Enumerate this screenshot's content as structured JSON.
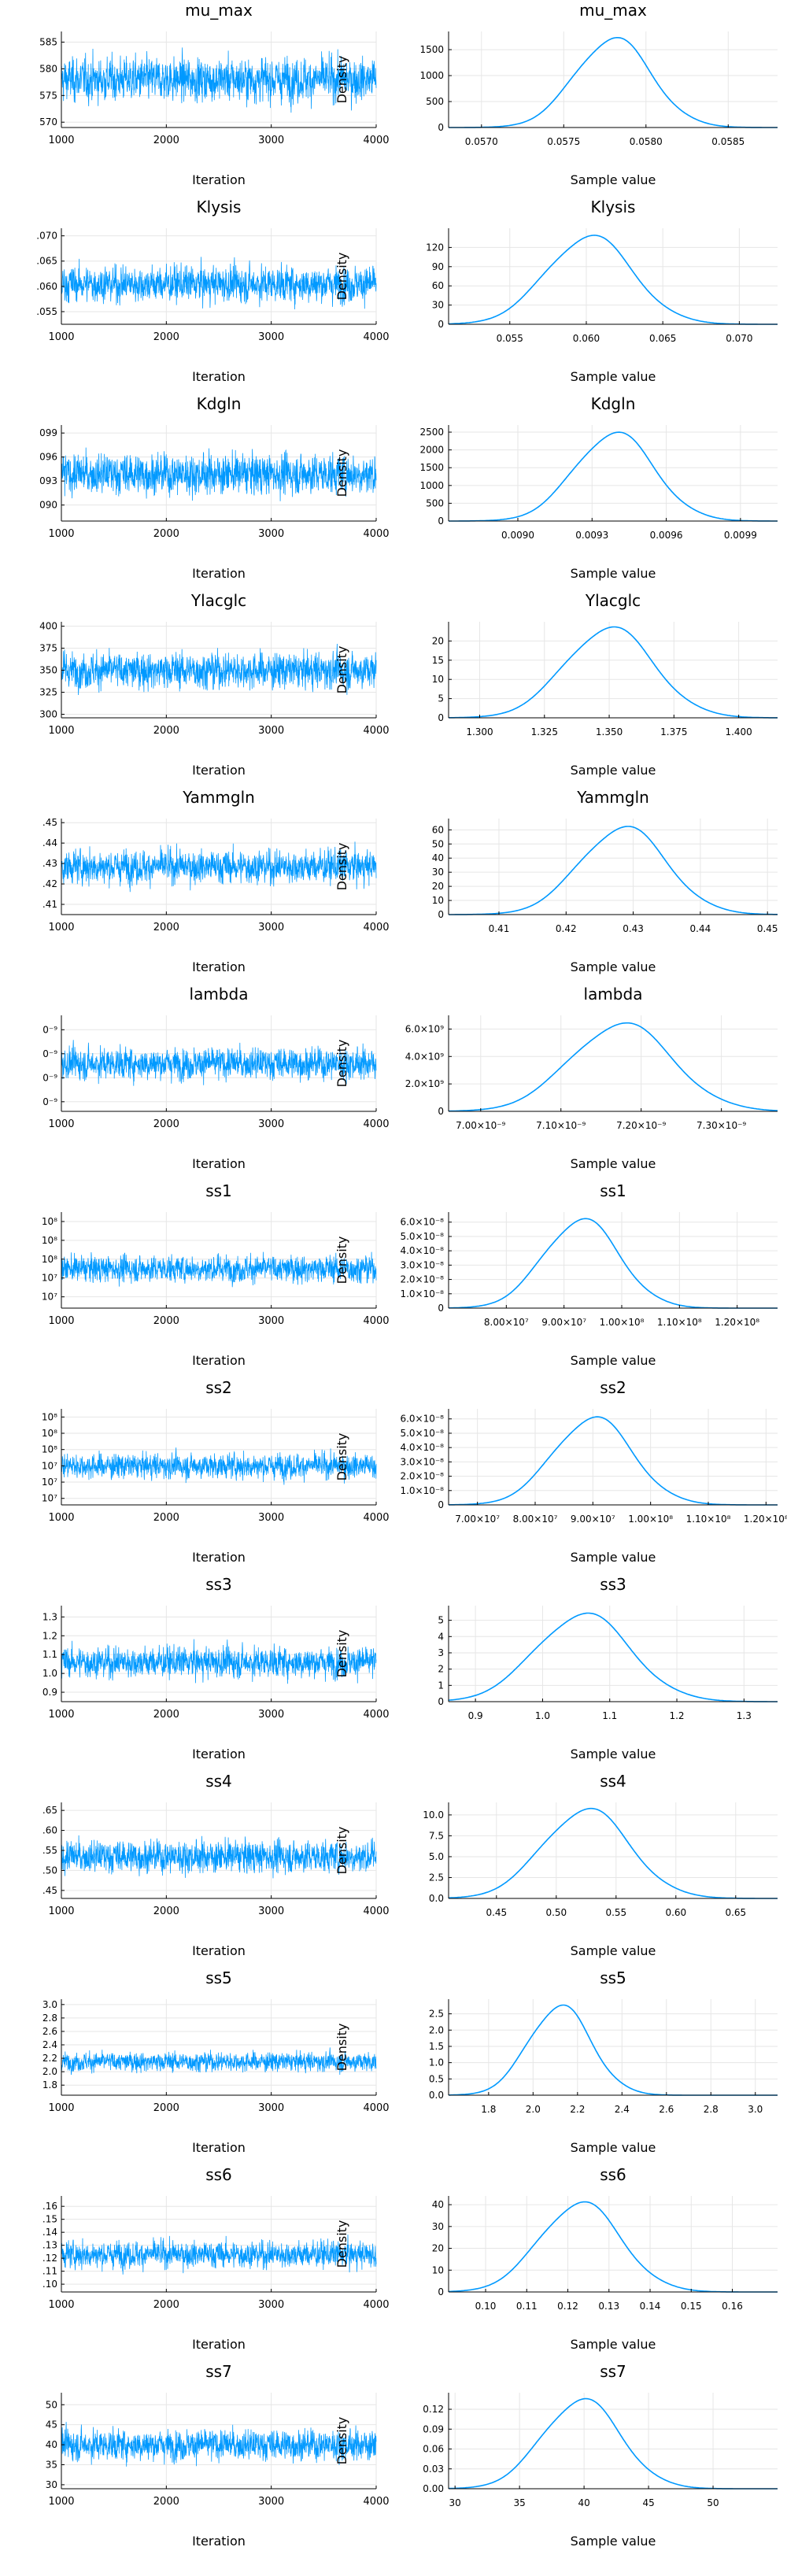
{
  "chart_data": [
    {
      "name": "mu_max",
      "type": "line",
      "trace": {
        "title": "mu_max",
        "xlabel": "Iteration",
        "ylabel": "",
        "xlim": [
          1000,
          4000
        ],
        "xticks": [
          "1000",
          "2000",
          "3000",
          "4000"
        ],
        "ylim": [
          0.0569,
          0.0587
        ],
        "yticks": [
          0.057,
          0.0575,
          0.058,
          0.0585
        ],
        "ytick_labels": [
          "570",
          "575",
          "580",
          "585"
        ],
        "center": 0.0578,
        "spread": 0.0004
      },
      "density": {
        "title": "mu_max",
        "xlabel": "Sample value",
        "ylabel": "Density",
        "xlim": [
          0.0568,
          0.0588
        ],
        "xticks": [
          0.057,
          0.0575,
          0.058,
          0.0585
        ],
        "xtick_labels": [
          "0.0570",
          "0.0575",
          "0.0580",
          "0.0585"
        ],
        "ylim": [
          0,
          1850
        ],
        "yticks": [
          0,
          500,
          1000,
          1500
        ],
        "ytick_labels": [
          "0",
          "500",
          "1000",
          "1500"
        ],
        "peak_x": 0.0578,
        "peak_y": 1720,
        "sd": 0.00023
      }
    },
    {
      "name": "Klysis",
      "type": "line",
      "trace": {
        "title": "Klysis",
        "xlabel": "Iteration",
        "ylabel": "",
        "xlim": [
          1000,
          4000
        ],
        "xticks": [
          "1000",
          "2000",
          "3000",
          "4000"
        ],
        "ylim": [
          0.0525,
          0.0715
        ],
        "yticks": [
          0.055,
          0.06,
          0.065,
          0.07
        ],
        "ytick_labels": [
          ".055",
          ".060",
          ".065",
          ".070"
        ],
        "center": 0.0605,
        "spread": 0.0035
      },
      "density": {
        "title": "Klysis",
        "xlabel": "Sample value",
        "ylabel": "Density",
        "xlim": [
          0.051,
          0.0725
        ],
        "xticks": [
          0.055,
          0.06,
          0.065,
          0.07
        ],
        "xtick_labels": [
          "0.055",
          "0.060",
          "0.065",
          "0.070"
        ],
        "ylim": [
          0,
          150
        ],
        "yticks": [
          0,
          30,
          60,
          90,
          120
        ],
        "ytick_labels": [
          "0",
          "30",
          "60",
          "90",
          "120"
        ],
        "peak_x": 0.0602,
        "peak_y": 138,
        "sd": 0.0028
      }
    },
    {
      "name": "Kdgln",
      "type": "line",
      "trace": {
        "title": "Kdgln",
        "xlabel": "Iteration",
        "ylabel": "",
        "xlim": [
          1000,
          4000
        ],
        "xticks": [
          "1000",
          "2000",
          "3000",
          "4000"
        ],
        "ylim": [
          0.0088,
          0.01
        ],
        "yticks": [
          0.009,
          0.0093,
          0.0096,
          0.0099
        ],
        "ytick_labels": [
          "090",
          "093",
          "096",
          "099"
        ],
        "center": 0.00939,
        "spread": 0.00025
      },
      "density": {
        "title": "Kdgln",
        "xlabel": "Sample value",
        "ylabel": "Density",
        "xlim": [
          0.00872,
          0.01005
        ],
        "xticks": [
          0.009,
          0.0093,
          0.0096,
          0.0099
        ],
        "xtick_labels": [
          "0.0090",
          "0.0093",
          "0.0096",
          "0.0099"
        ],
        "ylim": [
          0,
          2700
        ],
        "yticks": [
          0,
          500,
          1000,
          1500,
          2000,
          2500
        ],
        "ytick_labels": [
          "0",
          "500",
          "1000",
          "1500",
          "2000",
          "2500"
        ],
        "peak_x": 0.00939,
        "peak_y": 2480,
        "sd": 0.00016
      }
    },
    {
      "name": "Ylacglc",
      "type": "line",
      "trace": {
        "title": "Ylacglc",
        "xlabel": "Iteration",
        "ylabel": "",
        "xlim": [
          1000,
          4000
        ],
        "xticks": [
          "1000",
          "2000",
          "3000",
          "4000"
        ],
        "ylim": [
          1.296,
          1.405
        ],
        "yticks": [
          1.3,
          1.325,
          1.35,
          1.375,
          1.4
        ],
        "ytick_labels": [
          "300",
          "325",
          "350",
          "375",
          "400"
        ],
        "center": 1.35,
        "spread": 0.02
      },
      "density": {
        "title": "Ylacglc",
        "xlabel": "Sample value",
        "ylabel": "Density",
        "xlim": [
          1.288,
          1.415
        ],
        "xticks": [
          1.3,
          1.325,
          1.35,
          1.375,
          1.4
        ],
        "xtick_labels": [
          "1.300",
          "1.325",
          "1.350",
          "1.375",
          "1.400"
        ],
        "ylim": [
          0,
          25
        ],
        "yticks": [
          0,
          5,
          10,
          15,
          20
        ],
        "ytick_labels": [
          "0",
          "5",
          "10",
          "15",
          "20"
        ],
        "peak_x": 1.35,
        "peak_y": 23.5,
        "sd": 0.017
      }
    },
    {
      "name": "Yammgln",
      "type": "line",
      "trace": {
        "title": "Yammgln",
        "xlabel": "Iteration",
        "ylabel": "",
        "xlim": [
          1000,
          4000
        ],
        "xticks": [
          "1000",
          "2000",
          "3000",
          "4000"
        ],
        "ylim": [
          0.405,
          0.452
        ],
        "yticks": [
          0.41,
          0.42,
          0.43,
          0.44,
          0.45
        ],
        "ytick_labels": [
          ".41",
          ".42",
          ".43",
          ".44",
          ".45"
        ],
        "center": 0.4285,
        "spread": 0.008
      },
      "density": {
        "title": "Yammgln",
        "xlabel": "Sample value",
        "ylabel": "Density",
        "xlim": [
          0.4025,
          0.4515
        ],
        "xticks": [
          0.41,
          0.42,
          0.43,
          0.44,
          0.45
        ],
        "xtick_labels": [
          "0.41",
          "0.42",
          "0.43",
          "0.44",
          "0.45"
        ],
        "ylim": [
          0,
          68
        ],
        "yticks": [
          0,
          10,
          20,
          30,
          40,
          50,
          60
        ],
        "ytick_labels": [
          "0",
          "10",
          "20",
          "30",
          "40",
          "50",
          "60"
        ],
        "peak_x": 0.4285,
        "peak_y": 62,
        "sd": 0.0064
      }
    },
    {
      "name": "lambda",
      "type": "line",
      "trace": {
        "title": "lambda",
        "xlabel": "Iteration",
        "ylabel": "",
        "xlim": [
          1000,
          4000
        ],
        "xticks": [
          "1000",
          "2000",
          "3000",
          "4000"
        ],
        "ylim": [
          6.96e-09,
          7.36e-09
        ],
        "yticks": [
          7e-09,
          7.1e-09,
          7.2e-09,
          7.3e-09
        ],
        "ytick_labels": [
          "0⁻⁹",
          "0⁻⁹",
          "0⁻⁹",
          "0⁻⁹"
        ],
        "center": 7.16e-09,
        "spread": 6.5e-11
      },
      "density": {
        "title": "lambda",
        "xlabel": "Sample value",
        "ylabel": "Density",
        "xlim": [
          6.96e-09,
          7.37e-09
        ],
        "xticks": [
          7e-09,
          7.1e-09,
          7.2e-09,
          7.3e-09
        ],
        "xtick_labels": [
          "7.00×10⁻⁹",
          "7.10×10⁻⁹",
          "7.20×10⁻⁹",
          "7.30×10⁻⁹"
        ],
        "ylim": [
          0,
          7000000000.0
        ],
        "yticks": [
          0,
          2000000000.0,
          4000000000.0,
          6000000000.0
        ],
        "ytick_labels": [
          "0",
          "2.0×10⁹",
          "4.0×10⁹",
          "6.0×10⁹"
        ],
        "peak_x": 7.175e-09,
        "peak_y": 6400000000.0,
        "sd": 6.3e-11
      }
    },
    {
      "name": "ss1",
      "type": "line",
      "trace": {
        "title": "ss1",
        "xlabel": "Iteration",
        "ylabel": "",
        "xlim": [
          1000,
          4000
        ],
        "xticks": [
          "1000",
          "2000",
          "3000",
          "4000"
        ],
        "ylim": [
          74000000.0,
          125000000.0
        ],
        "yticks": [
          80000000.0,
          90000000.0,
          100000000.0,
          110000000.0,
          120000000.0
        ],
        "ytick_labels": [
          "10⁷",
          "10⁷",
          "10⁸",
          "10⁸",
          "10⁸"
        ],
        "center": 95000000.0,
        "spread": 7000000.0
      },
      "density": {
        "title": "ss1",
        "xlabel": "Sample value",
        "ylabel": "Density",
        "xlim": [
          70000000.0,
          127000000.0
        ],
        "xticks": [
          80000000.0,
          90000000.0,
          100000000.0,
          110000000.0,
          120000000.0
        ],
        "xtick_labels": [
          "8.00×10⁷",
          "9.00×10⁷",
          "1.00×10⁸",
          "1.10×10⁸",
          "1.20×10⁸"
        ],
        "ylim": [
          0,
          6.7e-08
        ],
        "yticks": [
          0,
          1e-08,
          2e-08,
          3e-08,
          4e-08,
          5e-08,
          6e-08
        ],
        "ytick_labels": [
          "0",
          "1.0×10⁻⁸",
          "2.0×10⁻⁸",
          "3.0×10⁻⁸",
          "4.0×10⁻⁸",
          "5.0×10⁻⁸",
          "6.0×10⁻⁸"
        ],
        "peak_x": 93000000.0,
        "peak_y": 6.2e-08,
        "sd": 6500000.0
      }
    },
    {
      "name": "ss2",
      "type": "line",
      "trace": {
        "title": "ss2",
        "xlabel": "Iteration",
        "ylabel": "",
        "xlim": [
          1000,
          4000
        ],
        "xticks": [
          "1000",
          "2000",
          "3000",
          "4000"
        ],
        "ylim": [
          66000000.0,
          125000000.0
        ],
        "yticks": [
          70000000.0,
          80000000.0,
          90000000.0,
          100000000.0,
          110000000.0,
          120000000.0
        ],
        "ytick_labels": [
          "10⁷",
          "10⁷",
          "10⁷",
          "10⁸",
          "10⁸",
          "10⁸"
        ],
        "center": 90000000.0,
        "spread": 7500000.0
      },
      "density": {
        "title": "ss2",
        "xlabel": "Sample value",
        "ylabel": "Density",
        "xlim": [
          65000000.0,
          122000000.0
        ],
        "xticks": [
          70000000.0,
          80000000.0,
          90000000.0,
          100000000.0,
          110000000.0,
          120000000.0
        ],
        "xtick_labels": [
          "7.00×10⁷",
          "8.00×10⁷",
          "9.00×10⁷",
          "1.00×10⁸",
          "1.10×10⁸",
          "1.20×10⁸"
        ],
        "ylim": [
          0,
          6.7e-08
        ],
        "yticks": [
          0,
          1e-08,
          2e-08,
          3e-08,
          4e-08,
          5e-08,
          6e-08
        ],
        "ytick_labels": [
          "0",
          "1.0×10⁻⁸",
          "2.0×10⁻⁸",
          "3.0×10⁻⁸",
          "4.0×10⁻⁸",
          "5.0×10⁻⁸",
          "6.0×10⁻⁸"
        ],
        "peak_x": 90000000.0,
        "peak_y": 6.1e-08,
        "sd": 6800000.0
      }
    },
    {
      "name": "ss3",
      "type": "line",
      "trace": {
        "title": "ss3",
        "xlabel": "Iteration",
        "ylabel": "",
        "xlim": [
          1000,
          4000
        ],
        "xticks": [
          "1000",
          "2000",
          "3000",
          "4000"
        ],
        "ylim": [
          0.85,
          1.36
        ],
        "yticks": [
          0.9,
          1.0,
          1.1,
          1.2,
          1.3
        ],
        "ytick_labels": [
          "0.9",
          "1.0",
          "1.1",
          "1.2",
          "1.3"
        ],
        "center": 1.06,
        "spread": 0.08
      },
      "density": {
        "title": "ss3",
        "xlabel": "Sample value",
        "ylabel": "Density",
        "xlim": [
          0.86,
          1.35
        ],
        "xticks": [
          0.9,
          1.0,
          1.1,
          1.2,
          1.3
        ],
        "xtick_labels": [
          "0.9",
          "1.0",
          "1.1",
          "1.2",
          "1.3"
        ],
        "ylim": [
          0,
          5.9
        ],
        "yticks": [
          0,
          1,
          2,
          3,
          4,
          5
        ],
        "ytick_labels": [
          "0",
          "1",
          "2",
          "3",
          "4",
          "5"
        ],
        "peak_x": 1.06,
        "peak_y": 5.4,
        "sd": 0.07
      }
    },
    {
      "name": "ss4",
      "type": "line",
      "trace": {
        "title": "ss4",
        "xlabel": "Iteration",
        "ylabel": "",
        "xlim": [
          1000,
          4000
        ],
        "xticks": [
          "1000",
          "2000",
          "3000",
          "4000"
        ],
        "ylim": [
          0.43,
          0.67
        ],
        "yticks": [
          0.45,
          0.5,
          0.55,
          0.6,
          0.65
        ],
        "ytick_labels": [
          ".45",
          ".50",
          ".55",
          ".60",
          ".65"
        ],
        "center": 0.535,
        "spread": 0.04
      },
      "density": {
        "title": "ss4",
        "xlabel": "Sample value",
        "ylabel": "Density",
        "xlim": [
          0.41,
          0.685
        ],
        "xticks": [
          0.45,
          0.5,
          0.55,
          0.6,
          0.65
        ],
        "xtick_labels": [
          "0.45",
          "0.50",
          "0.55",
          "0.60",
          "0.65"
        ],
        "ylim": [
          0,
          11.5
        ],
        "yticks": [
          0,
          2.5,
          5.0,
          7.5,
          10.0
        ],
        "ytick_labels": [
          "0.0",
          "2.5",
          "5.0",
          "7.5",
          "10.0"
        ],
        "peak_x": 0.525,
        "peak_y": 10.7,
        "sd": 0.036
      }
    },
    {
      "name": "ss5",
      "type": "line",
      "trace": {
        "title": "ss5",
        "xlabel": "Iteration",
        "ylabel": "",
        "xlim": [
          1000,
          4000
        ],
        "xticks": [
          "1000",
          "2000",
          "3000",
          "4000"
        ],
        "ylim": [
          1.65,
          3.08
        ],
        "yticks": [
          1.8,
          2.0,
          2.2,
          2.4,
          2.6,
          2.8,
          3.0
        ],
        "ytick_labels": [
          "1.8",
          "2.0",
          "2.2",
          "2.4",
          "2.6",
          "2.8",
          "3.0"
        ],
        "center": 2.15,
        "spread": 0.14
      },
      "density": {
        "title": "ss5",
        "xlabel": "Sample value",
        "ylabel": "Density",
        "xlim": [
          1.62,
          3.1
        ],
        "xticks": [
          1.8,
          2.0,
          2.2,
          2.4,
          2.6,
          2.8,
          3.0
        ],
        "xtick_labels": [
          "1.8",
          "2.0",
          "2.2",
          "2.4",
          "2.6",
          "2.8",
          "3.0"
        ],
        "ylim": [
          0,
          2.95
        ],
        "yticks": [
          0,
          0.5,
          1.0,
          1.5,
          2.0,
          2.5
        ],
        "ytick_labels": [
          "0.0",
          "0.5",
          "1.0",
          "1.5",
          "2.0",
          "2.5"
        ],
        "peak_x": 2.12,
        "peak_y": 2.75,
        "sd": 0.14
      }
    },
    {
      "name": "ss6",
      "type": "line",
      "trace": {
        "title": "ss6",
        "xlabel": "Iteration",
        "ylabel": "",
        "xlim": [
          1000,
          4000
        ],
        "xticks": [
          "1000",
          "2000",
          "3000",
          "4000"
        ],
        "ylim": [
          0.094,
          0.168
        ],
        "yticks": [
          0.1,
          0.11,
          0.12,
          0.13,
          0.14,
          0.15,
          0.16
        ],
        "ytick_labels": [
          ".10",
          ".11",
          ".12",
          ".13",
          ".14",
          ".15",
          ".16"
        ],
        "center": 0.123,
        "spread": 0.01
      },
      "density": {
        "title": "ss6",
        "xlabel": "Sample value",
        "ylabel": "Density",
        "xlim": [
          0.091,
          0.171
        ],
        "xticks": [
          0.1,
          0.11,
          0.12,
          0.13,
          0.14,
          0.15,
          0.16
        ],
        "xtick_labels": [
          "0.10",
          "0.11",
          "0.12",
          "0.13",
          "0.14",
          "0.15",
          "0.16"
        ],
        "ylim": [
          0,
          44
        ],
        "yticks": [
          0,
          10,
          20,
          30,
          40
        ],
        "ytick_labels": [
          "0",
          "10",
          "20",
          "30",
          "40"
        ],
        "peak_x": 0.123,
        "peak_y": 41,
        "sd": 0.0098
      }
    },
    {
      "name": "ss7",
      "type": "line",
      "trace": {
        "title": "ss7",
        "xlabel": "Iteration",
        "ylabel": "",
        "xlim": [
          1000,
          4000
        ],
        "xticks": [
          "1000",
          "2000",
          "3000",
          "4000"
        ],
        "ylim": [
          29,
          53
        ],
        "yticks": [
          30,
          35,
          40,
          45,
          50
        ],
        "ytick_labels": [
          "30",
          "35",
          "40",
          "45",
          "50"
        ],
        "center": 40,
        "spread": 3.8
      },
      "density": {
        "title": "ss7",
        "xlabel": "Sample value",
        "ylabel": "Density",
        "xlim": [
          29.5,
          55
        ],
        "xticks": [
          30,
          35,
          40,
          45,
          50
        ],
        "xtick_labels": [
          "30",
          "35",
          "40",
          "45",
          "50"
        ],
        "ylim": [
          0,
          0.145
        ],
        "yticks": [
          0,
          0.03,
          0.06,
          0.09,
          0.12
        ],
        "ytick_labels": [
          "0.00",
          "0.03",
          "0.06",
          "0.09",
          "0.12"
        ],
        "peak_x": 39.8,
        "peak_y": 0.135,
        "sd": 3.0
      }
    }
  ],
  "style": {
    "line_color": "#0099ff",
    "grid_color": "#e6e6e6"
  }
}
